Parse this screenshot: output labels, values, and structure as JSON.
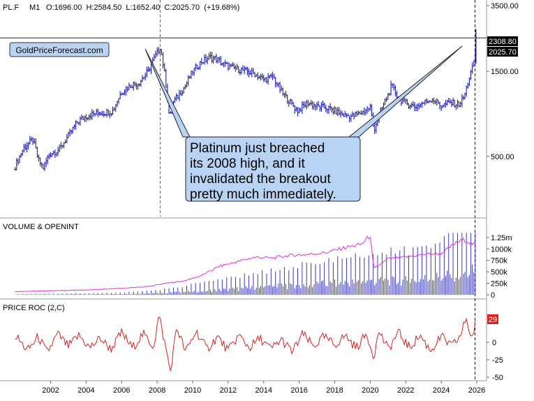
{
  "header": {
    "symbol": "PL.F",
    "interval": "M1",
    "ohlc": "O:1696.00  H:2584.50  L:1652.40  C:2025.70  (+19.68%)"
  },
  "watermark": "GoldPriceForecast.com",
  "annotation": {
    "lines": [
      "Platinum just breached",
      "its 2008 high, and it",
      "invalidated the breakout",
      "pretty much immediately."
    ]
  },
  "colors": {
    "price": "#1a1aa8",
    "volume_bars": "#3a3ab8",
    "open_interest": "#e040e0",
    "roc": "#d42020",
    "marker_line": "#e03030",
    "callout_fill": "#b9d3f5",
    "price_tag_bg": "#000000",
    "roc_tag_bg": "#e02020"
  },
  "chart_data": [
    {
      "type": "line",
      "panel": "price",
      "title": "PL.F M1",
      "y_scale": "log",
      "yticks": [
        "3500.00",
        "1500.00",
        "500.00"
      ],
      "reference_line": {
        "label": "2308.80",
        "value": 2308.8
      },
      "last_price_label": "2025.70",
      "x_tick_labels": [
        "2002",
        "2004",
        "2006",
        "2008",
        "2010",
        "2012",
        "2014",
        "2016",
        "2018",
        "2020",
        "2022",
        "2024",
        "2026"
      ],
      "vertical_markers": [
        2008.17,
        2025.9
      ],
      "series": [
        {
          "x": [
            2000.0,
            2000.5,
            2001.0,
            2001.3,
            2001.6,
            2001.9,
            2002.5,
            2003.0,
            2003.5,
            2004.0,
            2004.5,
            2005.0,
            2005.5,
            2006.0,
            2006.5,
            2007.0,
            2007.5,
            2008.0,
            2008.17,
            2008.4,
            2008.7,
            2008.9,
            2009.2,
            2009.6,
            2010.0,
            2010.5,
            2011.0,
            2011.4,
            2011.7,
            2012.0,
            2012.5,
            2013.0,
            2013.5,
            2014.0,
            2014.5,
            2015.0,
            2015.5,
            2015.9,
            2016.5,
            2017.0,
            2017.5,
            2018.0,
            2018.5,
            2019.0,
            2019.5,
            2020.0,
            2020.2,
            2020.5,
            2021.0,
            2021.2,
            2021.6,
            2022.0,
            2022.5,
            2023.0,
            2023.5,
            2024.0,
            2024.5,
            2025.0,
            2025.3,
            2025.6,
            2025.8,
            2025.95
          ],
          "values": [
            440,
            560,
            620,
            480,
            430,
            510,
            550,
            650,
            780,
            840,
            870,
            880,
            900,
            1150,
            1250,
            1300,
            1500,
            1900,
            2050,
            1500,
            800,
            1000,
            1100,
            1250,
            1500,
            1700,
            1800,
            1750,
            1650,
            1600,
            1550,
            1500,
            1450,
            1350,
            1400,
            1150,
            1000,
            900,
            1000,
            950,
            940,
            900,
            850,
            840,
            880,
            940,
            700,
            850,
            1100,
            1250,
            1050,
            1000,
            950,
            1000,
            1050,
            960,
            1000,
            980,
            1080,
            1400,
            1600,
            2025.7
          ]
        }
      ]
    },
    {
      "type": "bar",
      "panel": "volume",
      "title": "VOLUME & OPENINT",
      "yticks": [
        "1.25m",
        "1000k",
        "750k",
        "500k",
        "250k",
        "0"
      ],
      "series": [
        {
          "name": "volume",
          "x": [
            2000,
            2002,
            2004,
            2006,
            2008,
            2010,
            2012,
            2014,
            2016,
            2018,
            2020,
            2022,
            2024,
            2025.9
          ],
          "values": [
            10000,
            15000,
            20000,
            30000,
            60000,
            130000,
            210000,
            300000,
            370000,
            450000,
            520000,
            560000,
            700000,
            930000
          ]
        },
        {
          "name": "open interest",
          "x": [
            2000.0,
            2002.0,
            2004.0,
            2006.0,
            2007.5,
            2008.5,
            2009.5,
            2010.5,
            2011.5,
            2012.5,
            2013.5,
            2014.5,
            2015.5,
            2016.5,
            2017.5,
            2018.5,
            2019.5,
            2020.0,
            2020.2,
            2021.0,
            2022.0,
            2023.0,
            2024.0,
            2024.8,
            2025.3,
            2025.9
          ],
          "values": [
            70000,
            90000,
            105000,
            140000,
            180000,
            250000,
            300000,
            420000,
            620000,
            720000,
            820000,
            800000,
            860000,
            880000,
            920000,
            1020000,
            1100000,
            1290000,
            560000,
            780000,
            820000,
            880000,
            900000,
            1120000,
            1200000,
            1080000
          ]
        }
      ]
    },
    {
      "type": "line",
      "panel": "roc",
      "title": "PRICE ROC (2,C)",
      "yticks": [
        "0",
        "-25",
        "-50"
      ],
      "last_value_label": "29",
      "series": [
        {
          "x": [
            2000.0,
            2000.7,
            2001.3,
            2001.8,
            2002.4,
            2003.0,
            2003.6,
            2004.2,
            2004.8,
            2005.4,
            2006.0,
            2006.6,
            2007.2,
            2007.8,
            2008.1,
            2008.5,
            2008.75,
            2009.1,
            2009.6,
            2010.2,
            2010.8,
            2011.4,
            2012.0,
            2012.6,
            2013.2,
            2013.8,
            2014.4,
            2015.0,
            2015.6,
            2016.2,
            2016.8,
            2017.4,
            2018.0,
            2018.6,
            2019.2,
            2019.8,
            2020.2,
            2020.5,
            2021.0,
            2021.6,
            2022.2,
            2022.8,
            2023.4,
            2024.0,
            2024.6,
            2025.1,
            2025.4,
            2025.7,
            2025.95
          ],
          "values": [
            10,
            -12,
            8,
            -15,
            12,
            -6,
            10,
            -8,
            6,
            -10,
            14,
            -8,
            12,
            -6,
            38,
            -10,
            -42,
            22,
            -14,
            16,
            -10,
            8,
            -12,
            10,
            -8,
            6,
            -10,
            4,
            -14,
            12,
            -6,
            8,
            -4,
            10,
            -8,
            12,
            -20,
            16,
            -10,
            14,
            -8,
            10,
            -12,
            8,
            -6,
            10,
            36,
            4,
            29
          ]
        }
      ]
    }
  ]
}
